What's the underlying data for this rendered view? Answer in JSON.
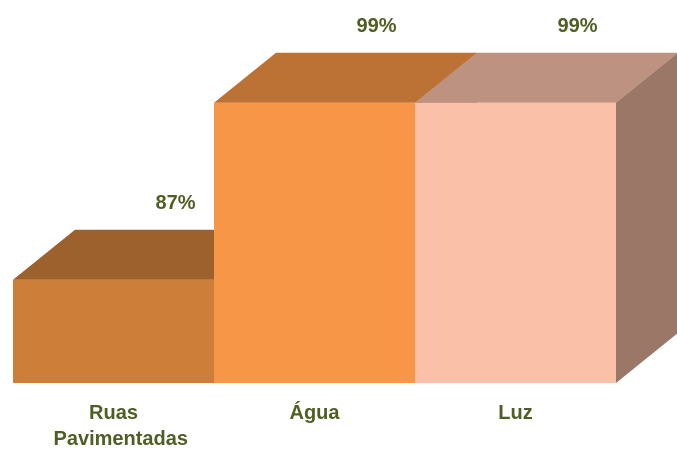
{
  "chart_data": {
    "type": "bar3d",
    "categories": [
      "Ruas Pavimentadas",
      "Água",
      "Luz"
    ],
    "values": [
      87,
      99,
      99
    ],
    "value_labels": [
      "87%",
      "99%",
      "99%"
    ],
    "colors": [
      "#cd7f3a",
      "#f79646",
      "#fac0a8"
    ],
    "ylim": [
      80,
      100
    ]
  }
}
